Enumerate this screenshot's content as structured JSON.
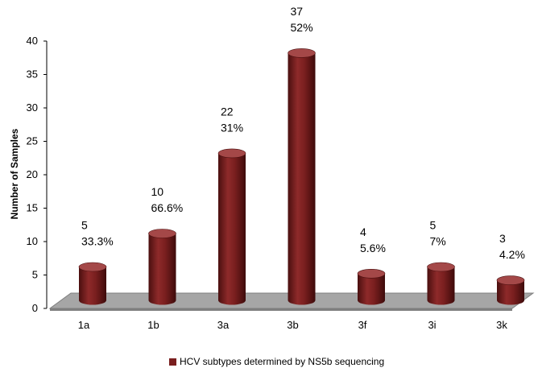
{
  "chart_data": {
    "type": "bar",
    "style": "3d-cylinder",
    "categories": [
      "1a",
      "1b",
      "3a",
      "3b",
      "3f",
      "3i",
      "3k"
    ],
    "series": [
      {
        "name": "HCV subtypes determined by NS5b sequencing",
        "values": [
          5,
          10,
          22,
          37,
          4,
          5,
          3
        ],
        "data_labels": [
          [
            "5",
            "33.3%"
          ],
          [
            "10",
            "66.6%"
          ],
          [
            "22",
            "31%"
          ],
          [
            "37",
            "52%"
          ],
          [
            "4",
            "5.6%"
          ],
          [
            "5",
            "7%"
          ],
          [
            "3",
            "4.2%"
          ]
        ]
      }
    ],
    "ylabel": "Number of Samples",
    "xlabel": "",
    "ylim": [
      0,
      40
    ],
    "yticks": [
      "0",
      "5",
      "10",
      "15",
      "20",
      "25",
      "30",
      "35",
      "40"
    ],
    "grid": false,
    "legend_position": "bottom",
    "colors": {
      "bar": "#7a1f1f",
      "bar_dark": "#4a0f0f",
      "bar_light": "#a44848",
      "floor": "#a6a6a6",
      "floor_edge": "#7f7f7f"
    }
  }
}
